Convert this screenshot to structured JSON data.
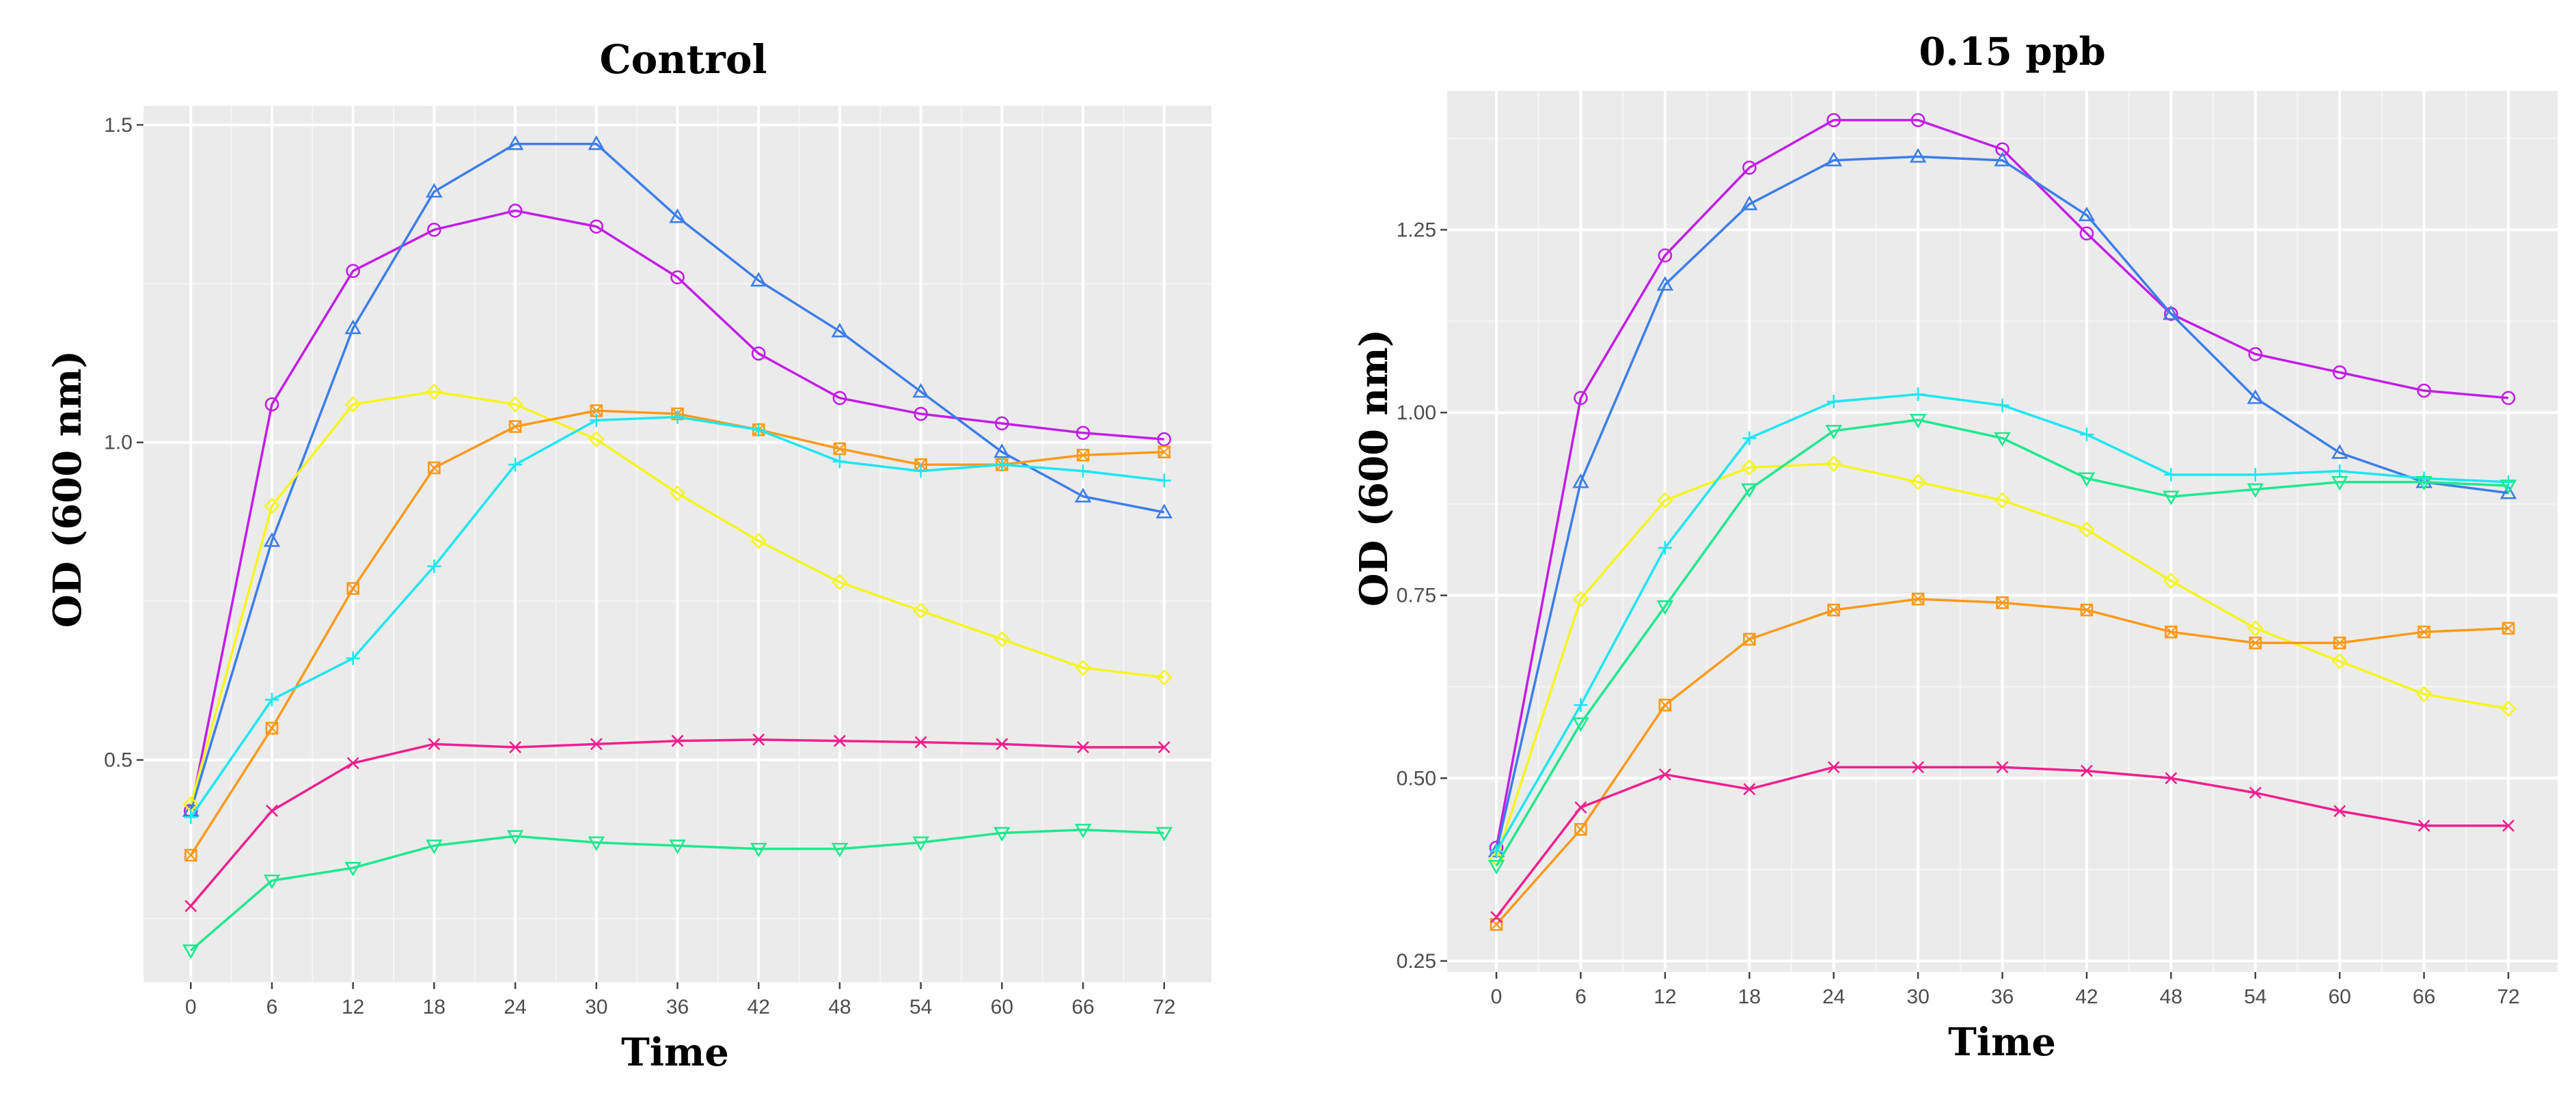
{
  "chart_data": [
    {
      "type": "line",
      "title": "Control",
      "xlabel": "Time",
      "ylabel": "OD (600 nm)",
      "x": [
        0,
        6,
        12,
        18,
        24,
        30,
        36,
        42,
        48,
        54,
        60,
        66,
        72
      ],
      "xlim": [
        -3.5,
        75.5
      ],
      "ylim": [
        0.15,
        1.53
      ],
      "yticks": [
        0.5,
        1.0,
        1.5
      ],
      "ytick_labels": [
        "0.5",
        "1.0",
        "1.5"
      ],
      "grid": true,
      "series": [
        {
          "name": "magenta-circle",
          "color": "#c21ee6",
          "marker": "circle",
          "values": [
            0.42,
            1.06,
            1.27,
            1.335,
            1.365,
            1.34,
            1.26,
            1.14,
            1.07,
            1.045,
            1.03,
            1.015,
            1.005
          ]
        },
        {
          "name": "blue-triangle",
          "color": "#3d7ee8",
          "marker": "triangle",
          "values": [
            0.42,
            0.845,
            1.18,
            1.395,
            1.47,
            1.47,
            1.355,
            1.255,
            1.175,
            1.08,
            0.985,
            0.915,
            0.89
          ]
        },
        {
          "name": "yellow-diamond",
          "color": "#f5f51e",
          "marker": "diamond",
          "values": [
            0.43,
            0.9,
            1.06,
            1.08,
            1.06,
            1.005,
            0.92,
            0.845,
            0.78,
            0.735,
            0.69,
            0.645,
            0.63
          ]
        },
        {
          "name": "orange-square",
          "color": "#fb9a1a",
          "marker": "square",
          "values": [
            0.35,
            0.55,
            0.77,
            0.96,
            1.025,
            1.05,
            1.045,
            1.02,
            0.99,
            0.965,
            0.965,
            0.98,
            0.985
          ]
        },
        {
          "name": "cyan-plus",
          "color": "#1ee6f0",
          "marker": "plus",
          "values": [
            0.41,
            0.595,
            0.66,
            0.805,
            0.965,
            1.035,
            1.04,
            1.02,
            0.97,
            0.955,
            0.965,
            0.955,
            0.94
          ]
        },
        {
          "name": "pink-cross",
          "color": "#f0208e",
          "marker": "cross",
          "values": [
            0.27,
            0.42,
            0.495,
            0.525,
            0.52,
            0.525,
            0.53,
            0.532,
            0.53,
            0.528,
            0.525,
            0.52,
            0.52
          ]
        },
        {
          "name": "green-down-triangle",
          "color": "#1ee88e",
          "marker": "trianglDown",
          "values": [
            0.2,
            0.31,
            0.33,
            0.365,
            0.38,
            0.37,
            0.365,
            0.36,
            0.36,
            0.37,
            0.385,
            0.39,
            0.385
          ]
        }
      ]
    },
    {
      "type": "line",
      "title": "0.15 ppb",
      "xlabel": "Time",
      "ylabel": "OD (600 nm)",
      "x": [
        0,
        6,
        12,
        18,
        24,
        30,
        36,
        42,
        48,
        54,
        60,
        66,
        72
      ],
      "xlim": [
        -3.5,
        75.5
      ],
      "ylim": [
        0.235,
        1.44
      ],
      "yticks": [
        0.25,
        0.5,
        0.75,
        1.0,
        1.25
      ],
      "ytick_labels": [
        "0.25",
        "0.50",
        "0.75",
        "1.00",
        "1.25"
      ],
      "grid": true,
      "series": [
        {
          "name": "magenta-circle",
          "color": "#c21ee6",
          "marker": "circle",
          "values": [
            0.405,
            1.02,
            1.215,
            1.335,
            1.4,
            1.4,
            1.36,
            1.245,
            1.135,
            1.08,
            1.055,
            1.03,
            1.02
          ]
        },
        {
          "name": "blue-triangle",
          "color": "#3d7ee8",
          "marker": "triangle",
          "values": [
            0.4,
            0.905,
            1.175,
            1.285,
            1.345,
            1.35,
            1.345,
            1.27,
            1.135,
            1.02,
            0.945,
            0.905,
            0.89
          ]
        },
        {
          "name": "yellow-diamond",
          "color": "#f5f51e",
          "marker": "diamond",
          "values": [
            0.39,
            0.745,
            0.88,
            0.925,
            0.93,
            0.905,
            0.88,
            0.84,
            0.77,
            0.705,
            0.66,
            0.615,
            0.595
          ]
        },
        {
          "name": "orange-square",
          "color": "#fb9a1a",
          "marker": "square",
          "values": [
            0.3,
            0.43,
            0.6,
            0.69,
            0.73,
            0.745,
            0.74,
            0.73,
            0.7,
            0.685,
            0.685,
            0.7,
            0.705
          ]
        },
        {
          "name": "cyan-plus",
          "color": "#1ee6f0",
          "marker": "plus",
          "values": [
            0.4,
            0.6,
            0.815,
            0.965,
            1.015,
            1.025,
            1.01,
            0.97,
            0.915,
            0.915,
            0.92,
            0.91,
            0.905
          ]
        },
        {
          "name": "green-down-triangle",
          "color": "#1ee88e",
          "marker": "triangleDown",
          "values": [
            0.38,
            0.575,
            0.735,
            0.895,
            0.975,
            0.99,
            0.965,
            0.91,
            0.885,
            0.895,
            0.905,
            0.905,
            0.9
          ]
        },
        {
          "name": "pink-cross",
          "color": "#f0208e",
          "marker": "cross",
          "values": [
            0.31,
            0.46,
            0.505,
            0.485,
            0.515,
            0.515,
            0.515,
            0.51,
            0.5,
            0.48,
            0.455,
            0.435,
            0.435
          ]
        }
      ]
    }
  ]
}
